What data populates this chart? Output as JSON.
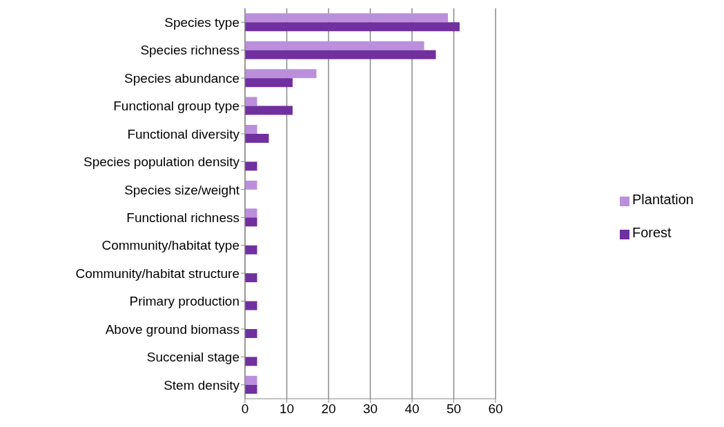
{
  "chart_data": {
    "type": "bar",
    "orientation": "horizontal",
    "categories": [
      "Species type",
      "Species richness",
      "Species abundance",
      "Functional group type",
      "Functional diversity",
      "Species population density",
      "Species size/weight",
      "Functional richness",
      "Community/habitat type",
      "Community/habitat structure",
      "Primary production",
      "Above ground biomass",
      "Succenial stage",
      "Stem density"
    ],
    "series": [
      {
        "name": "Plantation",
        "color": "#bb8fdc",
        "values": [
          48.6,
          42.9,
          17.1,
          2.9,
          2.9,
          null,
          2.9,
          2.9,
          null,
          null,
          null,
          null,
          null,
          2.9
        ]
      },
      {
        "name": "Forest",
        "color": "#7030a0",
        "values": [
          51.4,
          45.7,
          11.4,
          11.4,
          5.7,
          2.9,
          null,
          2.9,
          2.9,
          2.9,
          2.9,
          2.9,
          2.9,
          2.9
        ]
      }
    ],
    "xlim": [
      0,
      60
    ],
    "xticks": [
      0,
      10,
      20,
      30,
      40,
      50,
      60
    ],
    "grid": "x",
    "legend": "right"
  }
}
